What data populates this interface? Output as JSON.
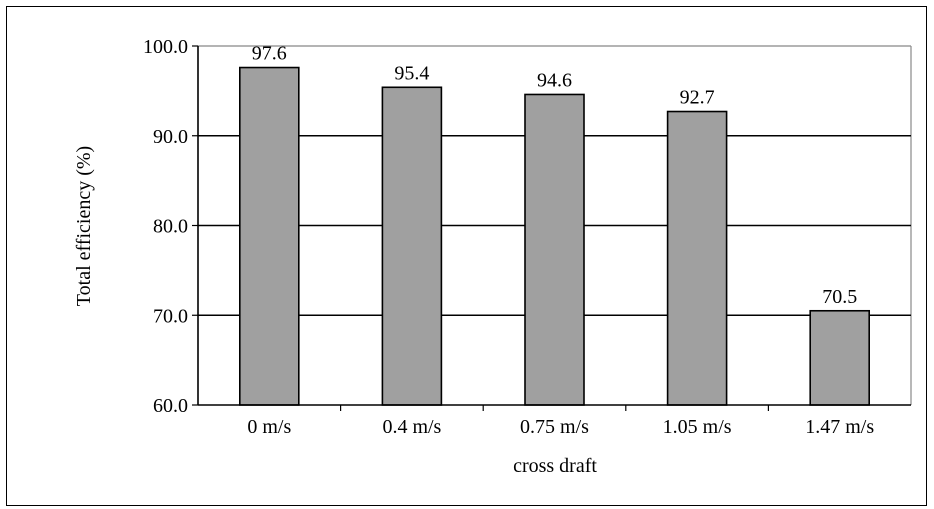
{
  "chart_data": {
    "type": "bar",
    "title": "",
    "xlabel": "cross draft",
    "ylabel": "Total efficiency (%)",
    "categories": [
      "0 m/s",
      "0.4 m/s",
      "0.75 m/s",
      "1.05 m/s",
      "1.47 m/s"
    ],
    "values": [
      97.6,
      95.4,
      94.6,
      92.7,
      70.5
    ],
    "data_labels": [
      "97.6",
      "95.4",
      "94.6",
      "92.7",
      "70.5"
    ],
    "ylim": [
      60,
      100
    ],
    "yticks": [
      60,
      70,
      80,
      90,
      100
    ],
    "ytick_labels": [
      "60.0",
      "70.0",
      "80.0",
      "90.0",
      "100.0"
    ],
    "grid": true,
    "bar_color": "#a0a0a0",
    "bar_outline_color": "#000000",
    "legend": "none"
  }
}
